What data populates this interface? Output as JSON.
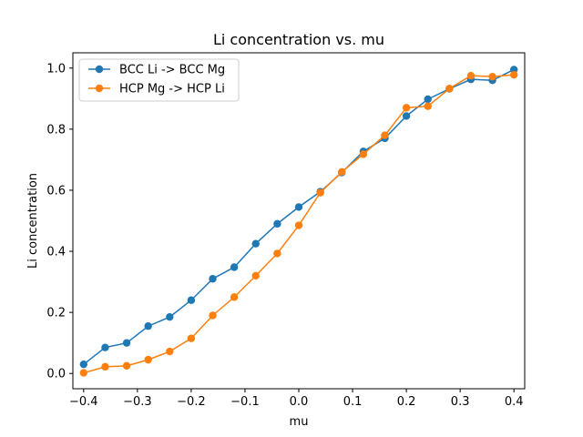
{
  "chart_data": {
    "type": "line",
    "title": "Li concentration vs. mu",
    "xlabel": "mu",
    "ylabel": "Li concentration",
    "xlim": [
      -0.42,
      0.42
    ],
    "ylim": [
      -0.05,
      1.05
    ],
    "xticks": [
      -0.4,
      -0.3,
      -0.2,
      -0.1,
      0.0,
      0.1,
      0.2,
      0.3,
      0.4
    ],
    "xtick_labels": [
      "−0.4",
      "−0.3",
      "−0.2",
      "−0.1",
      "0.0",
      "0.1",
      "0.2",
      "0.3",
      "0.4"
    ],
    "yticks": [
      0.0,
      0.2,
      0.4,
      0.6,
      0.8,
      1.0
    ],
    "ytick_labels": [
      "0.0",
      "0.2",
      "0.4",
      "0.6",
      "0.8",
      "1.0"
    ],
    "grid": false,
    "legend_position": "upper-left",
    "x": [
      -0.4,
      -0.36,
      -0.32,
      -0.28,
      -0.24,
      -0.2,
      -0.16,
      -0.12,
      -0.08,
      -0.04,
      0.0,
      0.04,
      0.08,
      0.12,
      0.16,
      0.2,
      0.24,
      0.28,
      0.32,
      0.36,
      0.4
    ],
    "series": [
      {
        "name": "BCC Li -> BCC Mg",
        "color": "#1f77b4",
        "values": [
          0.03,
          0.085,
          0.1,
          0.155,
          0.185,
          0.24,
          0.31,
          0.348,
          0.425,
          0.49,
          0.545,
          0.595,
          0.658,
          0.727,
          0.77,
          0.843,
          0.898,
          0.932,
          0.963,
          0.96,
          0.995
        ]
      },
      {
        "name": "HCP Mg -> HCP Li",
        "color": "#ff7f0e",
        "values": [
          0.002,
          0.022,
          0.025,
          0.045,
          0.072,
          0.115,
          0.19,
          0.25,
          0.32,
          0.393,
          0.485,
          0.592,
          0.66,
          0.718,
          0.78,
          0.87,
          0.875,
          0.933,
          0.975,
          0.972,
          0.978
        ]
      }
    ]
  }
}
